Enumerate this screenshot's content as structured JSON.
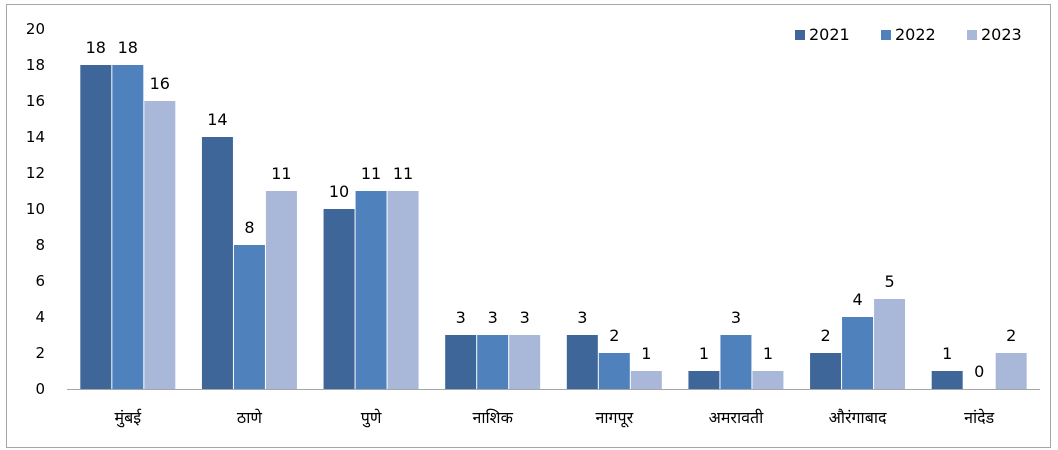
{
  "chart_data": {
    "type": "bar",
    "title": "",
    "xlabel": "",
    "ylabel": "",
    "ylim": [
      0,
      20
    ],
    "yticks": [
      0,
      2,
      4,
      6,
      8,
      10,
      12,
      14,
      16,
      18,
      20
    ],
    "grid": false,
    "legend_position": "top-right",
    "categories": [
      "मुंबई",
      "ठाणे",
      "पुणे",
      "नाशिक",
      "नागपूर",
      "अमरावती",
      "औरंगाबाद",
      "नांदेड"
    ],
    "series": [
      {
        "name": "2021",
        "color": "#3e6698",
        "values": [
          18,
          14,
          10,
          3,
          3,
          1,
          2,
          1
        ]
      },
      {
        "name": "2022",
        "color": "#4f81bd",
        "values": [
          18,
          8,
          11,
          3,
          2,
          3,
          4,
          0
        ]
      },
      {
        "name": "2023",
        "color": "#a9b8d8",
        "values": [
          16,
          11,
          11,
          3,
          1,
          1,
          5,
          2
        ]
      }
    ]
  }
}
